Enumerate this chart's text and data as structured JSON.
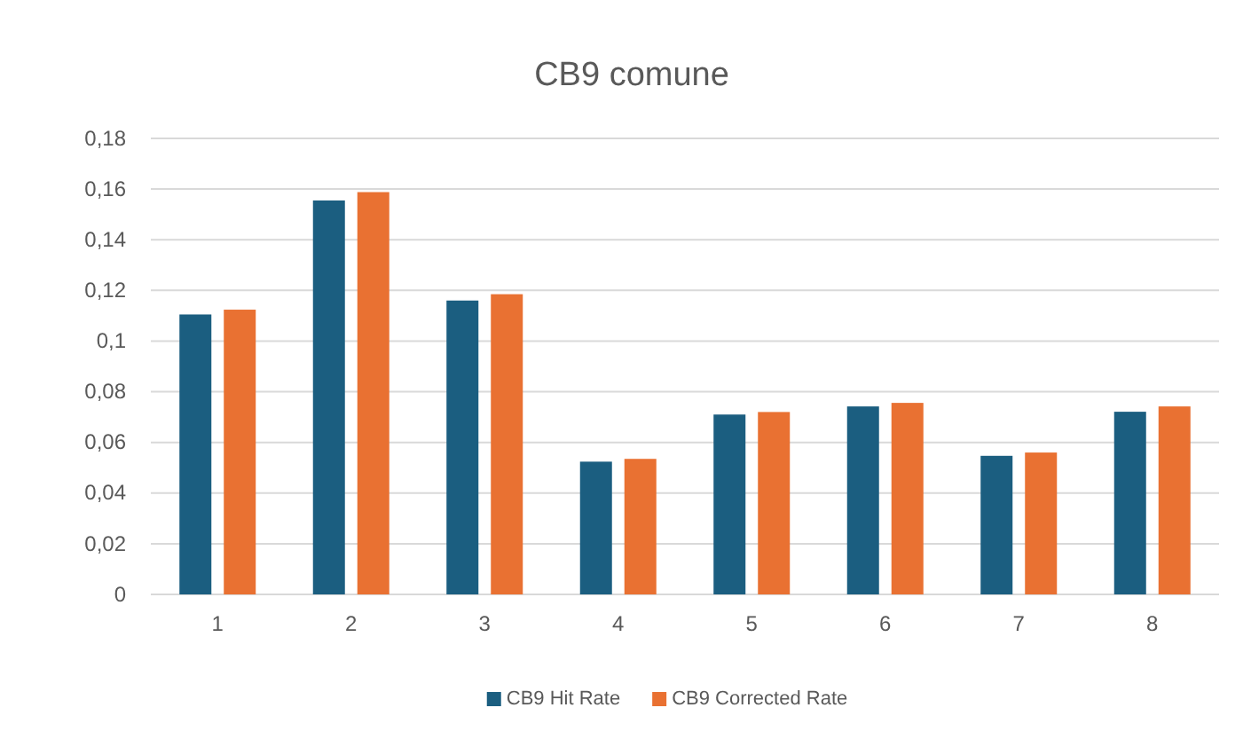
{
  "chart_data": {
    "type": "bar",
    "title": "CB9 comune",
    "categories": [
      "1",
      "2",
      "3",
      "4",
      "5",
      "6",
      "7",
      "8"
    ],
    "series": [
      {
        "name": "CB9 Hit Rate",
        "color": "#1b5e80",
        "values": [
          0.1105,
          0.1555,
          0.116,
          0.0524,
          0.071,
          0.0742,
          0.0547,
          0.0721
        ]
      },
      {
        "name": "CB9 Corrected Rate",
        "color": "#e97132",
        "values": [
          0.1124,
          0.1588,
          0.1185,
          0.0535,
          0.072,
          0.0756,
          0.056,
          0.0742
        ]
      }
    ],
    "ylim": [
      0,
      0.18
    ],
    "yticks": [
      0,
      {
        "value": 0.02,
        "label": "0,02"
      },
      {
        "value": 0.04,
        "label": "0,04"
      },
      {
        "value": 0.06,
        "label": "0,06"
      },
      {
        "value": 0.08,
        "label": "0,08"
      },
      {
        "value": 0.1,
        "label": "0,1"
      },
      {
        "value": 0.12,
        "label": "0,12"
      },
      {
        "value": 0.14,
        "label": "0,14"
      },
      {
        "value": 0.16,
        "label": "0,16"
      },
      {
        "value": 0.18,
        "label": "0,18"
      }
    ],
    "grid": "y",
    "legend": "bottom"
  }
}
